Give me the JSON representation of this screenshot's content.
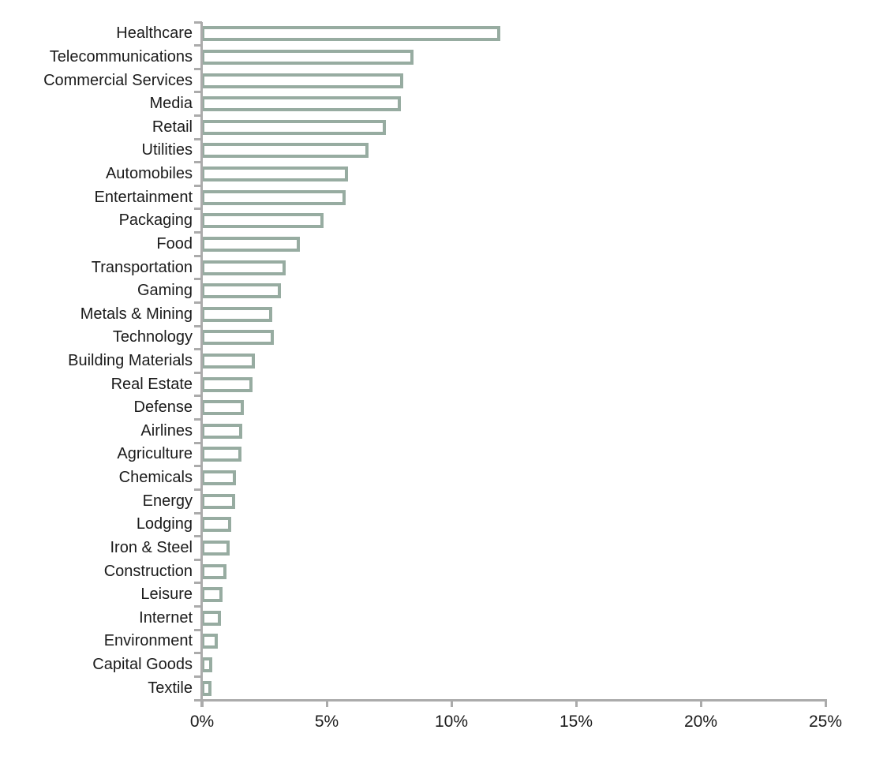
{
  "chart_data": {
    "type": "bar",
    "orientation": "horizontal",
    "title": "",
    "xlabel": "",
    "ylabel": "",
    "categories": [
      "Healthcare",
      "Telecommunications",
      "Commercial Services",
      "Media",
      "Retail",
      "Utilities",
      "Automobiles",
      "Entertainment",
      "Packaging",
      "Food",
      "Transportation",
      "Gaming",
      "Metals & Mining",
      "Technology",
      "Building Materials",
      "Real Estate",
      "Defense",
      "Airlines",
      "Agriculture",
      "Chemicals",
      "Energy",
      "Lodging",
      "Iron & Steel",
      "Construction",
      "Leisure",
      "Internet",
      "Environment",
      "Capital Goods",
      "Textile"
    ],
    "values": [
      12.0,
      8.5,
      8.1,
      8.0,
      7.4,
      6.7,
      5.9,
      5.8,
      4.9,
      3.95,
      3.4,
      3.2,
      2.85,
      2.9,
      2.15,
      2.05,
      1.7,
      1.65,
      1.6,
      1.4,
      1.35,
      1.2,
      1.15,
      1.0,
      0.85,
      0.8,
      0.65,
      0.45,
      0.4
    ],
    "value_unit": "%",
    "xlim": [
      0,
      25
    ],
    "x_ticks": [
      "0%",
      "5%",
      "10%",
      "15%",
      "20%",
      "25%"
    ],
    "x_tick_values": [
      0,
      5,
      10,
      15,
      20,
      25
    ],
    "grid": "off",
    "legend": "none",
    "bar_fill": "#ffffff",
    "bar_stroke": "#97aca1",
    "axis_color": "#ababab",
    "text_color": "#1b1b1b"
  }
}
